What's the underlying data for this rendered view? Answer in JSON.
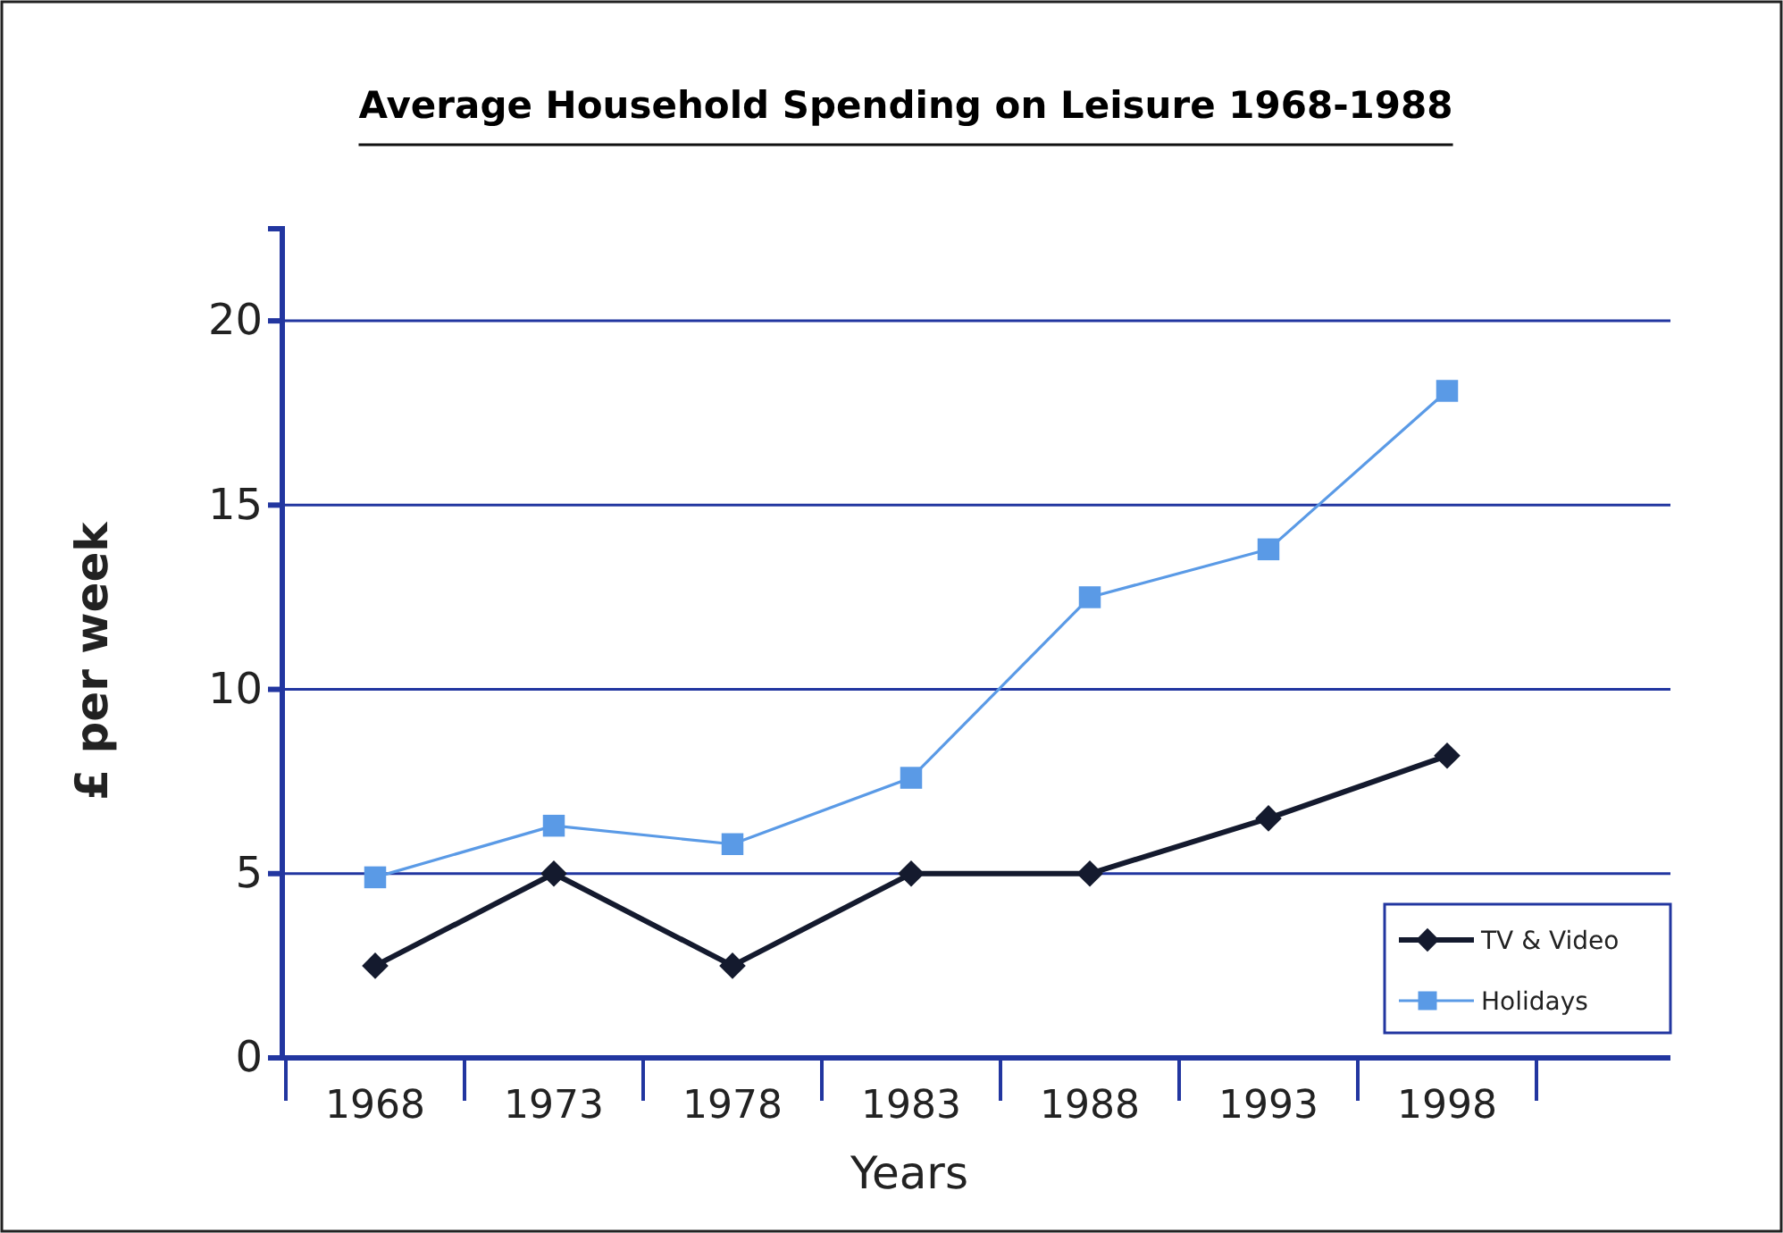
{
  "chart_data": {
    "type": "line",
    "title": "Average Household Spending on Leisure 1968-1988",
    "xlabel": "Years",
    "ylabel": "£ per week",
    "categories": [
      "1968",
      "1973",
      "1978",
      "1983",
      "1988",
      "1993",
      "1998"
    ],
    "series": [
      {
        "name": "TV & Video",
        "color": "#141a2e",
        "marker": "diamond",
        "values": [
          2.5,
          5,
          2.5,
          5,
          5,
          6.5,
          8.2
        ]
      },
      {
        "name": "Holidays",
        "color": "#5a9ae6",
        "marker": "square",
        "values": [
          4.9,
          6.3,
          5.8,
          7.6,
          12.5,
          13.8,
          18.1
        ]
      }
    ],
    "ylim": [
      0,
      22.5
    ],
    "yticks": [
      0,
      5,
      10,
      15,
      20
    ],
    "grid": "y",
    "legend": "bottom right"
  }
}
